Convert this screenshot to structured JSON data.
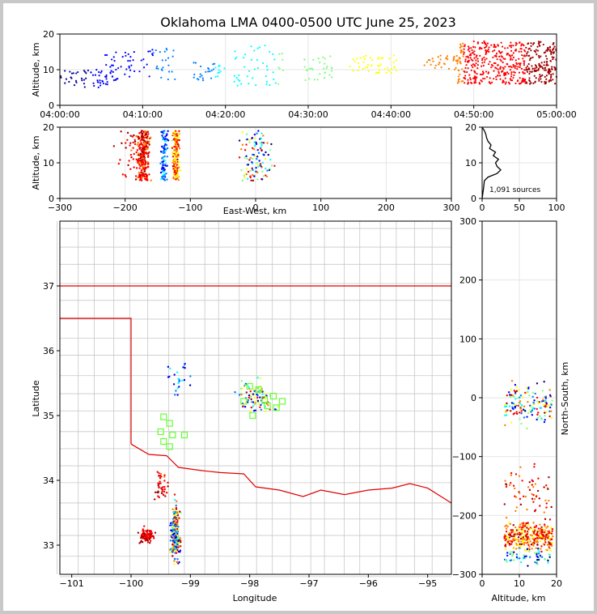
{
  "title": "Oklahoma LMA 0400-0500 UTC June 25, 2023",
  "source_count_label": "1,091 sources",
  "colors": {
    "state_border": "#e00000",
    "county_lines": "#c8c8c8",
    "grid": "#e6e6e6",
    "cluster_marker": "#66ff33",
    "time_colormap": [
      "#0000a0",
      "#0000ff",
      "#0080ff",
      "#00ffff",
      "#80ff80",
      "#ffff00",
      "#ff8000",
      "#ff0000",
      "#a00000"
    ]
  },
  "chart_data": [
    {
      "name": "altitude-time",
      "type": "scatter",
      "x_ticks": [
        "04:00:00",
        "04:10:00",
        "04:20:00",
        "04:30:00",
        "04:40:00",
        "04:50:00",
        "05:00:00"
      ],
      "xlim": [
        "04:00:00",
        "05:00:00"
      ],
      "ylim": [
        0,
        20
      ],
      "y_ticks": [
        0,
        10,
        20
      ],
      "ylabel": "Altitude, km",
      "clusters": [
        {
          "t_min": [
            0,
            7
          ],
          "alt": [
            5,
            10
          ]
        },
        {
          "t_min": [
            5,
            10
          ],
          "alt": [
            7,
            15
          ]
        },
        {
          "t_min": [
            10,
            14
          ],
          "alt": [
            7,
            16
          ]
        },
        {
          "t_min": [
            16,
            20
          ],
          "alt": [
            7,
            12
          ]
        },
        {
          "t_min": [
            21,
            27
          ],
          "alt": [
            5,
            17
          ]
        },
        {
          "t_min": [
            29,
            33
          ],
          "alt": [
            7,
            14
          ]
        },
        {
          "t_min": [
            35,
            41
          ],
          "alt": [
            9,
            14
          ]
        },
        {
          "t_min": [
            44,
            48
          ],
          "alt": [
            10,
            14
          ]
        },
        {
          "t_min": [
            48,
            60
          ],
          "alt": [
            6,
            18
          ]
        }
      ]
    },
    {
      "name": "altitude-eastwest",
      "type": "scatter",
      "xlim": [
        -300,
        300
      ],
      "x_ticks": [
        -300,
        -200,
        -100,
        0,
        100,
        200,
        300
      ],
      "ylim": [
        0,
        20
      ],
      "y_ticks": [
        0,
        10,
        20
      ],
      "xlabel": "East-West, km",
      "ylabel": "Altitude, km"
    },
    {
      "name": "altitude-histogram",
      "type": "line",
      "xlim": [
        0,
        100
      ],
      "x_ticks": [
        0,
        50,
        100
      ],
      "ylim": [
        0,
        20
      ],
      "y_ticks": [
        0,
        10,
        20
      ],
      "profile": [
        [
          0,
          0
        ],
        [
          2,
          3
        ],
        [
          3,
          5
        ],
        [
          8,
          6
        ],
        [
          20,
          7
        ],
        [
          25,
          8
        ],
        [
          20,
          9
        ],
        [
          18,
          10
        ],
        [
          22,
          11
        ],
        [
          15,
          12
        ],
        [
          18,
          13
        ],
        [
          10,
          14
        ],
        [
          12,
          15
        ],
        [
          8,
          16
        ],
        [
          6,
          17
        ],
        [
          5,
          18
        ],
        [
          3,
          19
        ],
        [
          0,
          20
        ]
      ]
    },
    {
      "name": "plan-view",
      "type": "scatter",
      "xlim": [
        -101.2,
        -94.6
      ],
      "x_ticks": [
        -101,
        -100,
        -99,
        -98,
        -97,
        -96,
        -95
      ],
      "ylim": [
        32.55,
        38.0
      ],
      "y_ticks": [
        33,
        34,
        35,
        36,
        37
      ],
      "xlabel": "Longitude",
      "ylabel": "Latitude",
      "stations": [
        [
          -99.45,
          34.98
        ],
        [
          -99.35,
          34.88
        ],
        [
          -99.1,
          34.7
        ],
        [
          -99.3,
          34.7
        ],
        [
          -99.5,
          34.75
        ],
        [
          -99.45,
          34.6
        ],
        [
          -99.35,
          34.52
        ],
        [
          -98.0,
          35.45
        ],
        [
          -97.85,
          35.4
        ],
        [
          -97.6,
          35.3
        ],
        [
          -97.45,
          35.22
        ],
        [
          -97.55,
          35.12
        ],
        [
          -97.7,
          35.15
        ],
        [
          -97.95,
          35.0
        ],
        [
          -98.1,
          35.22
        ],
        [
          -97.75,
          35.25
        ]
      ]
    },
    {
      "name": "altitude-northsouth",
      "type": "scatter",
      "xlim": [
        0,
        20
      ],
      "x_ticks": [
        0,
        10,
        20
      ],
      "ylim": [
        -300,
        300
      ],
      "y_ticks": [
        -300,
        -200,
        -100,
        0,
        100,
        200,
        300
      ],
      "xlabel": "Altitude, km",
      "ylabel": "North-South, km"
    }
  ]
}
